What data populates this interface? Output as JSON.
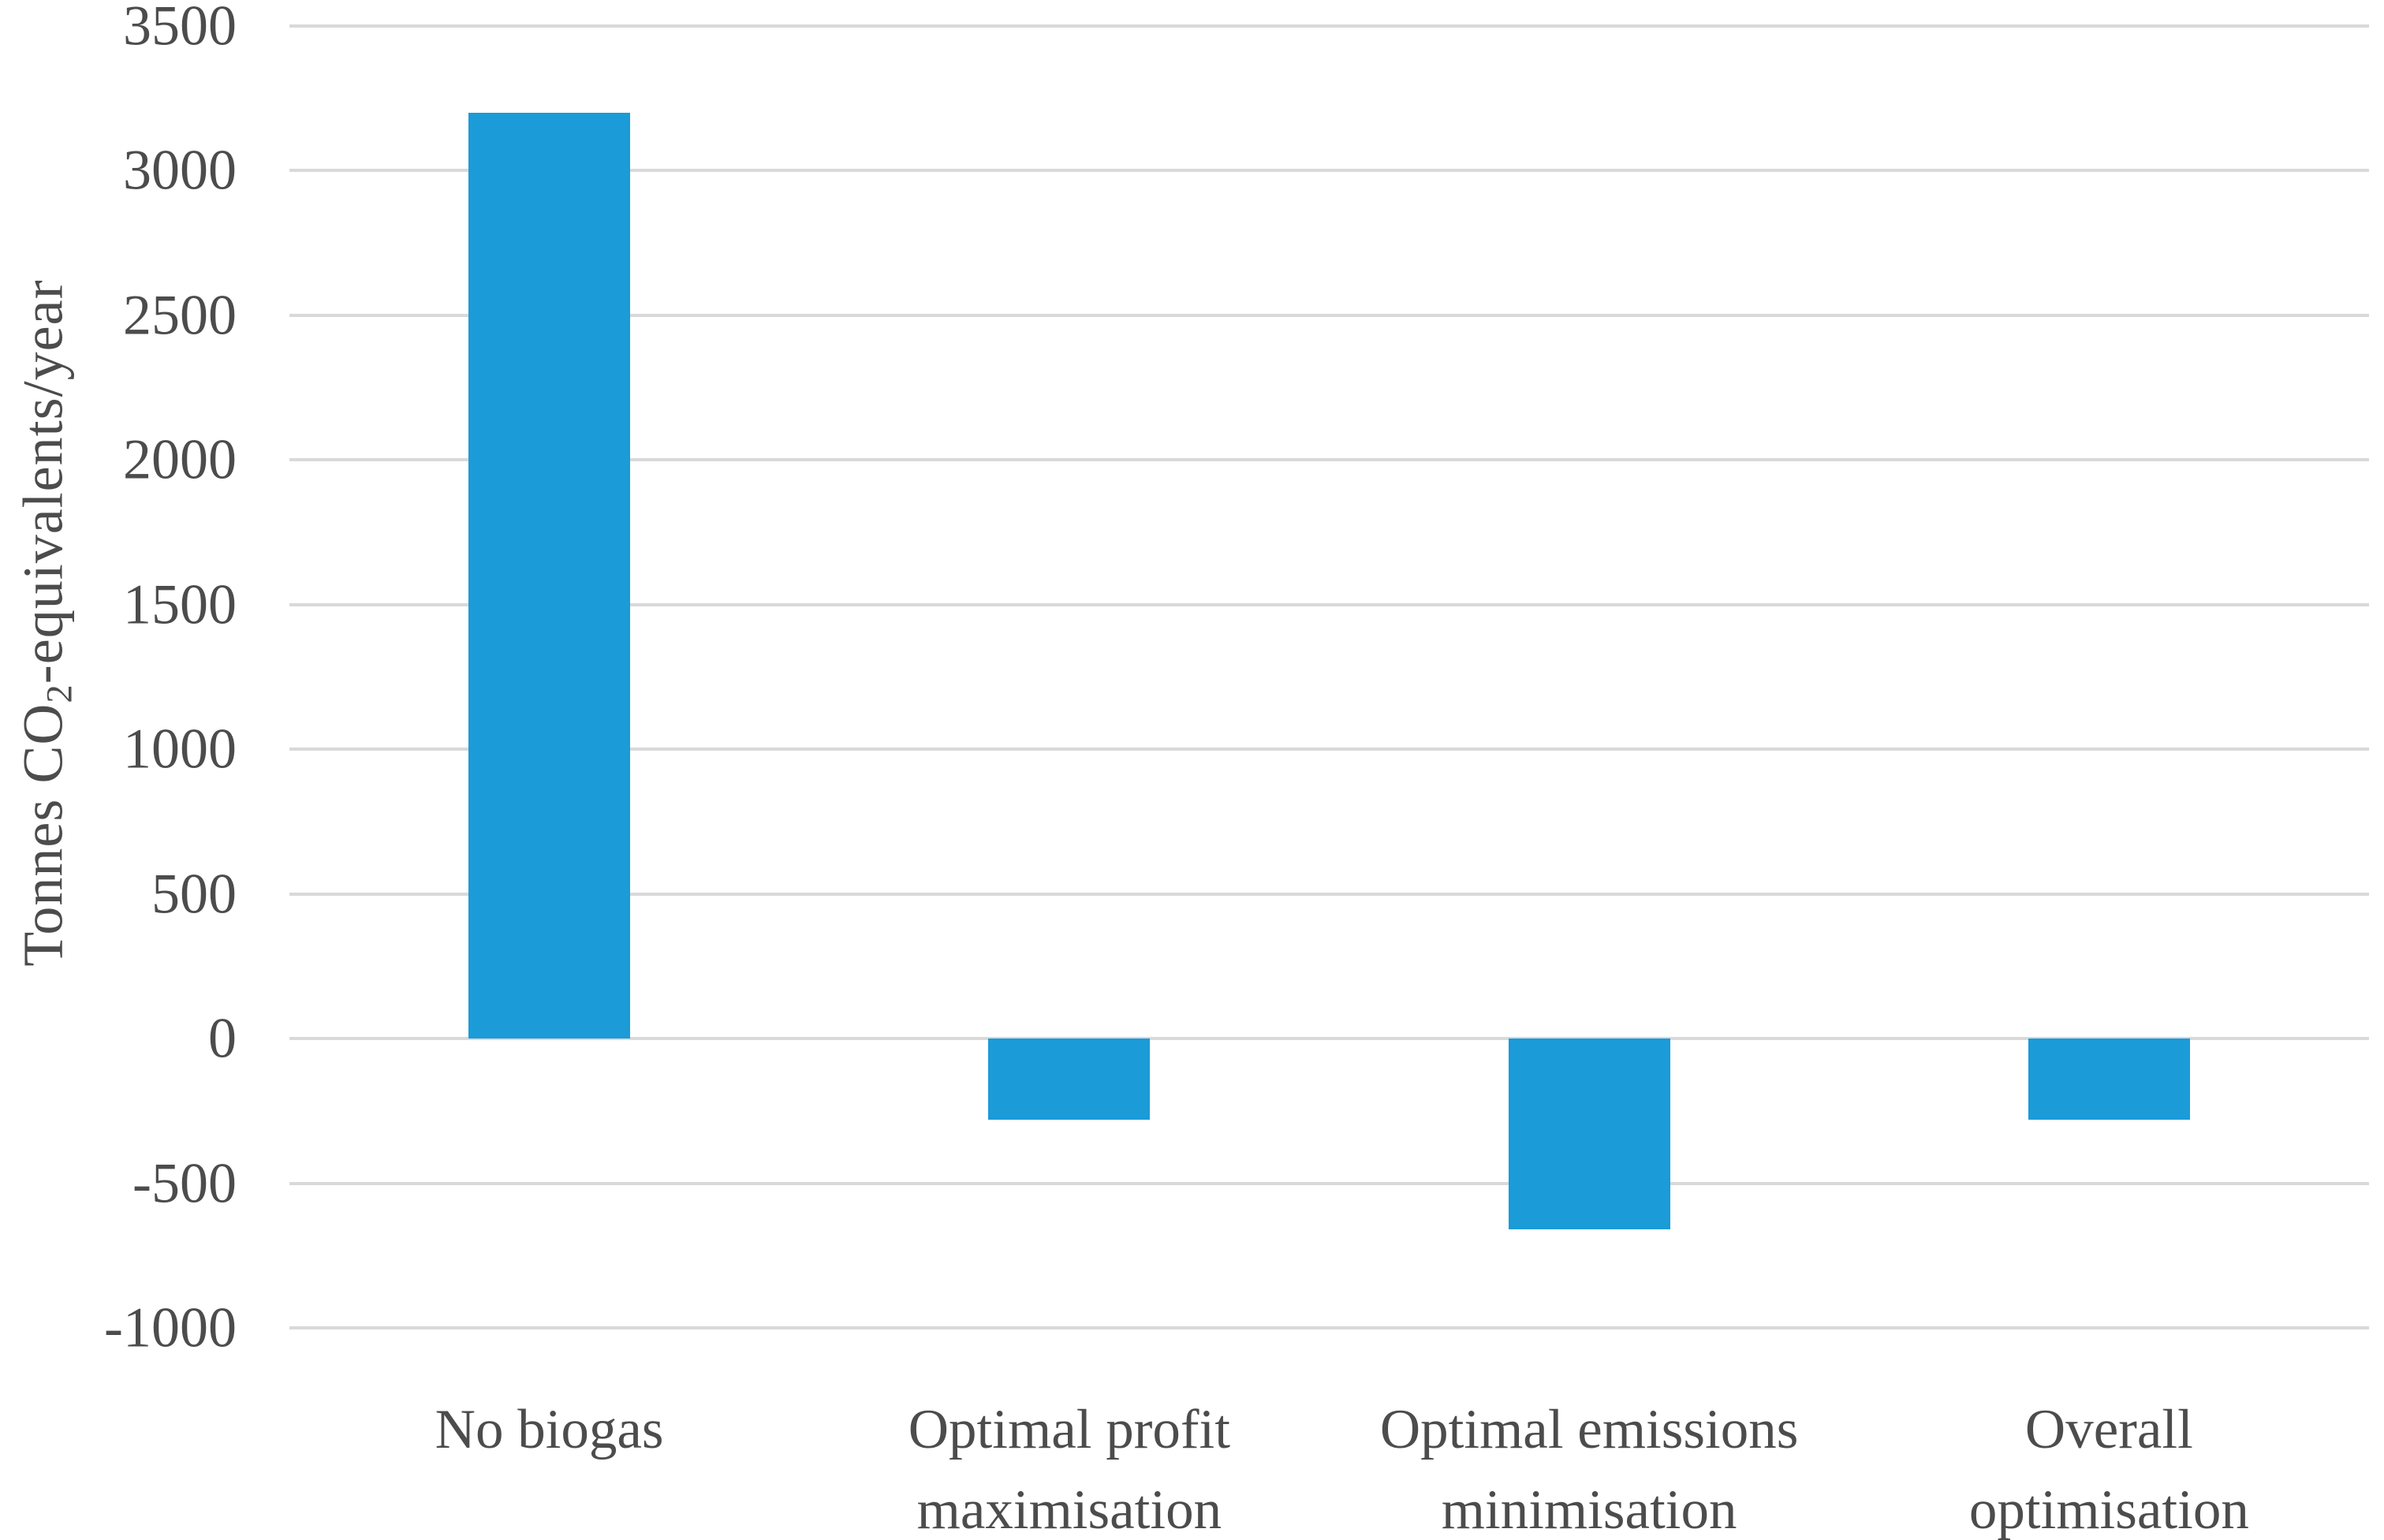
{
  "figure": {
    "background_color": "#ffffff",
    "text_color": "#4c4c4c",
    "gridline_color": "#d9d9d9",
    "bar_color": "#1b9bd8"
  },
  "y_axis": {
    "title_prefix": "Tonnes CO",
    "title_subscript": "2",
    "title_suffix": "-equivalents/year",
    "tick_labels": [
      "3500",
      "3000",
      "2500",
      "2000",
      "1500",
      "1000",
      "500",
      "0",
      "-500",
      "-1000"
    ]
  },
  "x_axis": {
    "category_lines": [
      [
        "No biogas"
      ],
      [
        "Optimal profit",
        "maximisation"
      ],
      [
        "Optimal emissions",
        "minimisation"
      ],
      [
        "Overall",
        "optimisation"
      ]
    ]
  },
  "chart_data": {
    "type": "bar",
    "title": "",
    "xlabel": "",
    "ylabel": "Tonnes CO2-equivalents/year",
    "categories": [
      "No biogas",
      "Optimal profit maximisation",
      "Optimal emissions minimisation",
      "Overall optimisation"
    ],
    "values": [
      3200,
      -280,
      -660,
      -280
    ],
    "ylim": [
      -1000,
      3500
    ],
    "ytick_step": 500,
    "grid": true,
    "legend": false,
    "bar_color": "#1b9bd8"
  }
}
